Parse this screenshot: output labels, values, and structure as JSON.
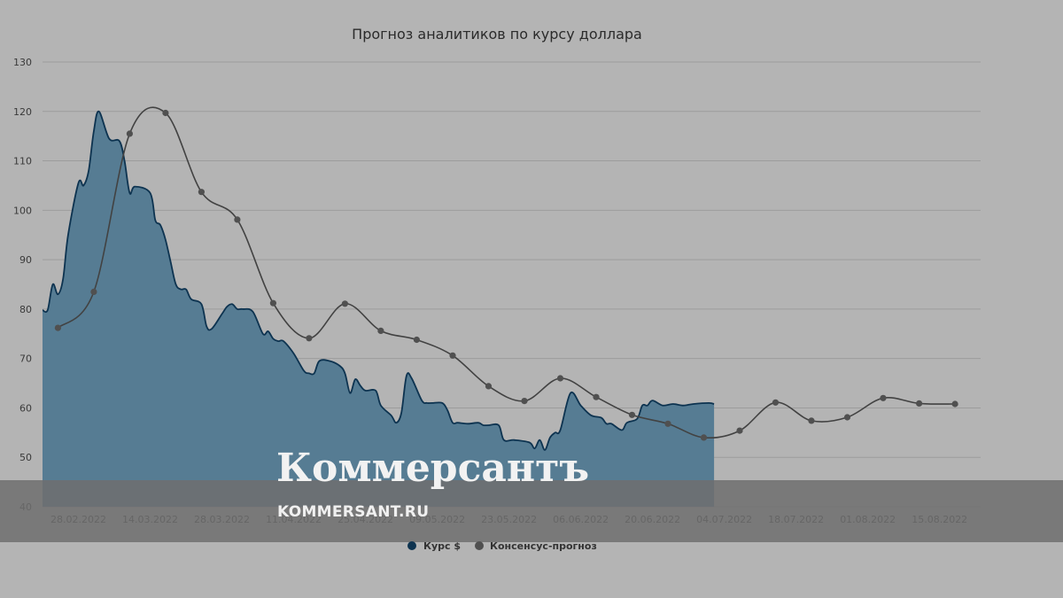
{
  "colors": {
    "background": "#b4b4b4",
    "grid": "#9c9c9c",
    "area_fill": "#567c93",
    "area_stroke": "#0d3350",
    "consensus_line": "#424242",
    "consensus_marker": "#505050",
    "watermark_band": "#6e6e6e"
  },
  "watermark": {
    "brand": "Коммерсантъ",
    "url": "KOMMERSANT.RU"
  },
  "chart_data": {
    "type": "area",
    "title": "Прогноз аналитиков по курсу доллара",
    "ylim": [
      40,
      130
    ],
    "yticks": [
      40,
      50,
      60,
      70,
      80,
      90,
      100,
      110,
      120,
      130
    ],
    "xlim": [
      "2022-02-21",
      "2022-08-23"
    ],
    "grid": true,
    "legend_position": "bottom-center",
    "xticks": [
      {
        "date": "2022-02-28",
        "label": "28.02.2022"
      },
      {
        "date": "2022-03-14",
        "label": "14.03.2022"
      },
      {
        "date": "2022-03-28",
        "label": "28.03.2022"
      },
      {
        "date": "2022-04-11",
        "label": "11.04.2022"
      },
      {
        "date": "2022-04-25",
        "label": "25.04.2022"
      },
      {
        "date": "2022-05-09",
        "label": "09.05.2022"
      },
      {
        "date": "2022-05-23",
        "label": "23.05.2022"
      },
      {
        "date": "2022-06-06",
        "label": "06.06.2022"
      },
      {
        "date": "2022-06-20",
        "label": "20.06.2022"
      },
      {
        "date": "2022-07-04",
        "label": "04.07.2022"
      },
      {
        "date": "2022-07-18",
        "label": "18.07.2022"
      },
      {
        "date": "2022-08-01",
        "label": "01.08.2022"
      },
      {
        "date": "2022-08-15",
        "label": "15.08.2022"
      }
    ],
    "series": [
      {
        "name": "Курс $",
        "type": "area",
        "points": [
          [
            "2022-02-21",
            79.8
          ],
          [
            "2022-02-22",
            79.8
          ],
          [
            "2022-02-23",
            85.0
          ],
          [
            "2022-02-24",
            83.0
          ],
          [
            "2022-02-25",
            86.0
          ],
          [
            "2022-02-26",
            95.0
          ],
          [
            "2022-02-28",
            105.5
          ],
          [
            "2022-03-01",
            105.0
          ],
          [
            "2022-03-02",
            108.0
          ],
          [
            "2022-03-03",
            116.0
          ],
          [
            "2022-03-04",
            120.0
          ],
          [
            "2022-03-06",
            114.5
          ],
          [
            "2022-03-08",
            114.0
          ],
          [
            "2022-03-09",
            110.0
          ],
          [
            "2022-03-10",
            103.5
          ],
          [
            "2022-03-11",
            104.8
          ],
          [
            "2022-03-14",
            103.5
          ],
          [
            "2022-03-15",
            98.0
          ],
          [
            "2022-03-16",
            97.0
          ],
          [
            "2022-03-17",
            94.0
          ],
          [
            "2022-03-18",
            89.5
          ],
          [
            "2022-03-19",
            85.0
          ],
          [
            "2022-03-20",
            84.0
          ],
          [
            "2022-03-21",
            84.0
          ],
          [
            "2022-03-22",
            82.0
          ],
          [
            "2022-03-24",
            81.0
          ],
          [
            "2022-03-25",
            76.5
          ],
          [
            "2022-03-26",
            76.0
          ],
          [
            "2022-03-28",
            79.0
          ],
          [
            "2022-03-29",
            80.5
          ],
          [
            "2022-03-30",
            81.0
          ],
          [
            "2022-03-31",
            80.0
          ],
          [
            "2022-04-01",
            80.0
          ],
          [
            "2022-04-03",
            79.5
          ],
          [
            "2022-04-05",
            75.0
          ],
          [
            "2022-04-06",
            75.5
          ],
          [
            "2022-04-07",
            74.0
          ],
          [
            "2022-04-08",
            73.5
          ],
          [
            "2022-04-09",
            73.5
          ],
          [
            "2022-04-11",
            71.0
          ],
          [
            "2022-04-13",
            67.5
          ],
          [
            "2022-04-14",
            67.0
          ],
          [
            "2022-04-15",
            67.0
          ],
          [
            "2022-04-16",
            69.5
          ],
          [
            "2022-04-18",
            69.5
          ],
          [
            "2022-04-20",
            68.5
          ],
          [
            "2022-04-21",
            67.0
          ],
          [
            "2022-04-22",
            63.0
          ],
          [
            "2022-04-23",
            65.8
          ],
          [
            "2022-04-24",
            64.5
          ],
          [
            "2022-04-25",
            63.5
          ],
          [
            "2022-04-27",
            63.5
          ],
          [
            "2022-04-28",
            60.5
          ],
          [
            "2022-04-30",
            58.5
          ],
          [
            "2022-05-01",
            57.0
          ],
          [
            "2022-05-02",
            59.0
          ],
          [
            "2022-05-03",
            66.5
          ],
          [
            "2022-05-04",
            66.0
          ],
          [
            "2022-05-06",
            61.5
          ],
          [
            "2022-05-07",
            61.0
          ],
          [
            "2022-05-08",
            61.0
          ],
          [
            "2022-05-10",
            61.0
          ],
          [
            "2022-05-11",
            59.5
          ],
          [
            "2022-05-12",
            57.0
          ],
          [
            "2022-05-13",
            57.0
          ],
          [
            "2022-05-15",
            56.8
          ],
          [
            "2022-05-17",
            57.0
          ],
          [
            "2022-05-18",
            56.5
          ],
          [
            "2022-05-19",
            56.5
          ],
          [
            "2022-05-21",
            56.5
          ],
          [
            "2022-05-22",
            53.5
          ],
          [
            "2022-05-24",
            53.5
          ],
          [
            "2022-05-27",
            53.0
          ],
          [
            "2022-05-28",
            51.8
          ],
          [
            "2022-05-29",
            53.5
          ],
          [
            "2022-05-30",
            51.5
          ],
          [
            "2022-05-31",
            54.0
          ],
          [
            "2022-06-01",
            55.0
          ],
          [
            "2022-06-02",
            55.5
          ],
          [
            "2022-06-04",
            63.0
          ],
          [
            "2022-06-06",
            60.5
          ],
          [
            "2022-06-08",
            58.5
          ],
          [
            "2022-06-10",
            58.0
          ],
          [
            "2022-06-11",
            56.8
          ],
          [
            "2022-06-12",
            56.8
          ],
          [
            "2022-06-14",
            55.5
          ],
          [
            "2022-06-15",
            57.0
          ],
          [
            "2022-06-17",
            57.8
          ],
          [
            "2022-06-18",
            60.5
          ],
          [
            "2022-06-19",
            60.5
          ],
          [
            "2022-06-20",
            61.5
          ],
          [
            "2022-06-22",
            60.5
          ],
          [
            "2022-06-24",
            60.8
          ],
          [
            "2022-06-26",
            60.5
          ],
          [
            "2022-06-28",
            60.8
          ],
          [
            "2022-07-01",
            61.0
          ],
          [
            "2022-07-02",
            60.8
          ]
        ]
      },
      {
        "name": "Консенсус-прогноз",
        "type": "line",
        "points": [
          [
            "2022-02-24",
            76.2
          ],
          [
            "2022-03-03",
            83.5
          ],
          [
            "2022-03-10",
            115.5
          ],
          [
            "2022-03-17",
            119.7
          ],
          [
            "2022-03-24",
            103.7
          ],
          [
            "2022-03-31",
            98.1
          ],
          [
            "2022-04-07",
            81.2
          ],
          [
            "2022-04-14",
            74.1
          ],
          [
            "2022-04-21",
            81.1
          ],
          [
            "2022-04-28",
            75.6
          ],
          [
            "2022-05-05",
            73.8
          ],
          [
            "2022-05-12",
            70.6
          ],
          [
            "2022-05-19",
            64.4
          ],
          [
            "2022-05-26",
            61.4
          ],
          [
            "2022-06-02",
            66.0
          ],
          [
            "2022-06-09",
            62.2
          ],
          [
            "2022-06-16",
            58.6
          ],
          [
            "2022-06-23",
            56.8
          ],
          [
            "2022-06-30",
            54.0
          ],
          [
            "2022-07-07",
            55.4
          ],
          [
            "2022-07-14",
            61.1
          ],
          [
            "2022-07-21",
            57.4
          ],
          [
            "2022-07-28",
            58.1
          ],
          [
            "2022-08-04",
            62.0
          ],
          [
            "2022-08-11",
            60.9
          ],
          [
            "2022-08-18",
            60.8
          ]
        ]
      }
    ]
  }
}
